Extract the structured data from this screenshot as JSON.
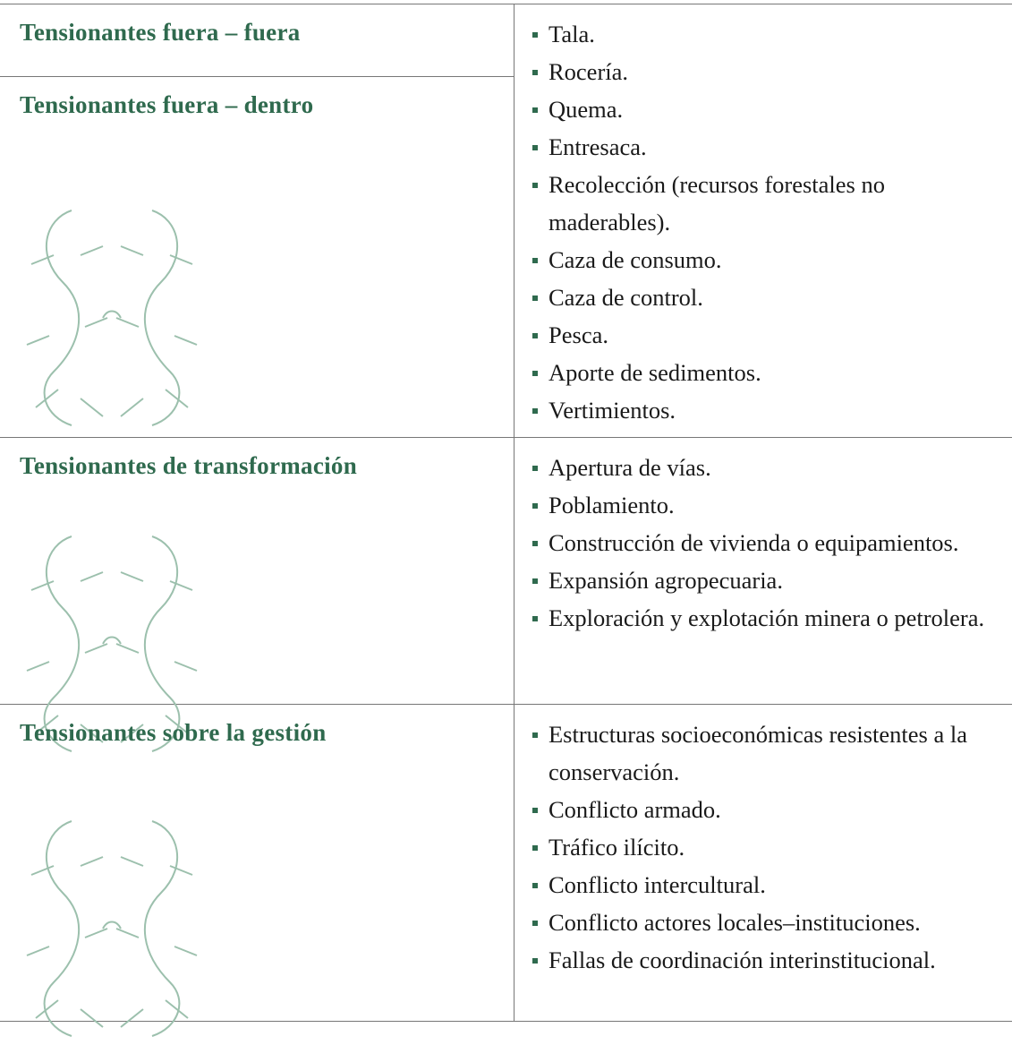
{
  "rows": [
    {
      "headings": [
        "Tensionantes fuera – fuera",
        "Tensionantes fuera – dentro"
      ],
      "items": [
        "Tala.",
        "Rocería.",
        "Quema.",
        "Entresaca.",
        "Recolección (recursos forestales no maderables).",
        "Caza de consumo.",
        "Caza de control.",
        "Pesca.",
        "Aporte de sedimentos.",
        "Vertimientos."
      ]
    },
    {
      "headings": [
        "Tensionantes de transformación"
      ],
      "items": [
        "Apertura de vías.",
        "Poblamiento.",
        "Construcción de vivienda o equipamientos.",
        "Expansión agropecuaria.",
        "Exploración y explotación minera o petrolera."
      ]
    },
    {
      "headings": [
        "Tensionantes sobre la gestión"
      ],
      "items": [
        "Estructuras socioeconómicas resistentes a la conservación.",
        "Conflicto armado.",
        "Tráfico ilícito.",
        "Conflicto intercultural.",
        "Conflicto actores locales–instituciones.",
        "Fallas de coordinación interinstitucional."
      ]
    }
  ]
}
